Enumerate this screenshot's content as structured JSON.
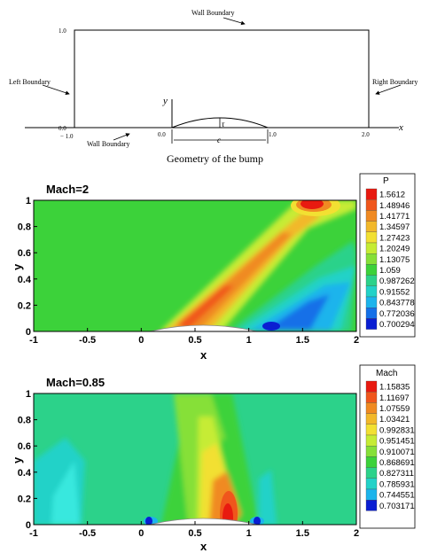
{
  "geometry_figure": {
    "wall_top": "Wall Boundary",
    "wall_bottom": "Wall Boundary",
    "left": "Left Boundary",
    "right": "Right Boundary",
    "y_axis": "y",
    "x_axis": "x",
    "tick_top": "1.0",
    "tick_origin_y": "0.0",
    "tick_x_left": "− 1.0",
    "tick_x_zero": "0.0",
    "tick_x_one": "1.0",
    "tick_x_two": "2.0",
    "tau": "τ",
    "chord": "c",
    "caption": "Geometry of the bump"
  },
  "plots": [
    {
      "title": "Mach=2",
      "legend_title": "P",
      "legend_values": [
        "1.5612",
        "1.48946",
        "1.41771",
        "1.34597",
        "1.27423",
        "1.20249",
        "1.13075",
        "1.059",
        "0.987262",
        "0.91552",
        "0.843778",
        "0.772036",
        "0.700294"
      ],
      "xlabel": "x",
      "ylabel": "y"
    },
    {
      "title": "Mach=0.85",
      "legend_title": "Mach",
      "legend_values": [
        "1.15835",
        "1.11697",
        "1.07559",
        "1.03421",
        "0.992831",
        "0.951451",
        "0.910071",
        "0.868691",
        "0.827311",
        "0.785931",
        "0.744551",
        "0.703171"
      ],
      "xlabel": "x",
      "ylabel": "y"
    }
  ],
  "x_ticks": [
    "-1",
    "-0.5",
    "0",
    "0.5",
    "1",
    "1.5",
    "2"
  ],
  "y_ticks": [
    "0",
    "0.2",
    "0.4",
    "0.6",
    "0.8",
    "1"
  ],
  "colorbar_colors": [
    "#e81a10",
    "#f0561c",
    "#f08a22",
    "#f2b82a",
    "#f2e032",
    "#c6ec34",
    "#86e038",
    "#3cd23a",
    "#2cd28a",
    "#22d2c8",
    "#1cb4ec",
    "#1470e8",
    "#0a1ed2"
  ]
}
